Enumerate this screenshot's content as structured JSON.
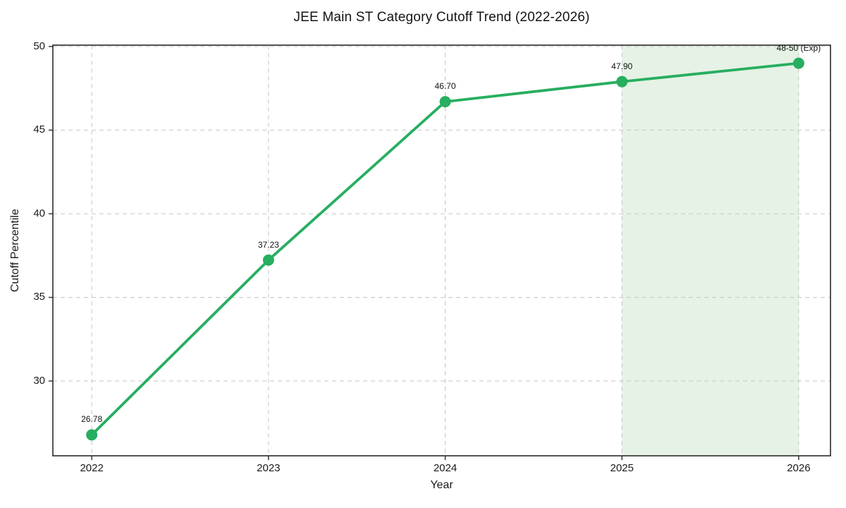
{
  "chart_data": {
    "type": "line",
    "title": "JEE Main ST Category Cutoff Trend (2022-2026)",
    "xlabel": "Year",
    "ylabel": "Cutoff Percentile",
    "x": [
      2022,
      2023,
      2024,
      2025,
      2026
    ],
    "y": [
      26.78,
      37.23,
      46.7,
      47.9,
      49.0
    ],
    "point_labels": [
      "26.78",
      "37.23",
      "46.70",
      "47.90",
      "48-50 (Exp)"
    ],
    "x_tick_labels": [
      "2022",
      "2023",
      "2024",
      "2025",
      "2026"
    ],
    "x_tick_values": [
      2022,
      2023,
      2024,
      2025,
      2026
    ],
    "y_tick_labels": [
      "30",
      "35",
      "40",
      "45",
      "50"
    ],
    "y_tick_values": [
      30,
      35,
      40,
      45,
      50
    ],
    "xlim": [
      2021.78,
      2026.18
    ],
    "ylim": [
      25.53,
      50.08
    ],
    "grid": "dashed",
    "legend": "none",
    "line_color": "#27ae60",
    "marker_color": "#27ae60",
    "grid_color": "#c6c6c6",
    "spine_color": "#2a2a2a",
    "shaded_region": {
      "x_start": 2025,
      "x_end": 2026,
      "color": "rgba(0,128,0,0.10)"
    }
  }
}
